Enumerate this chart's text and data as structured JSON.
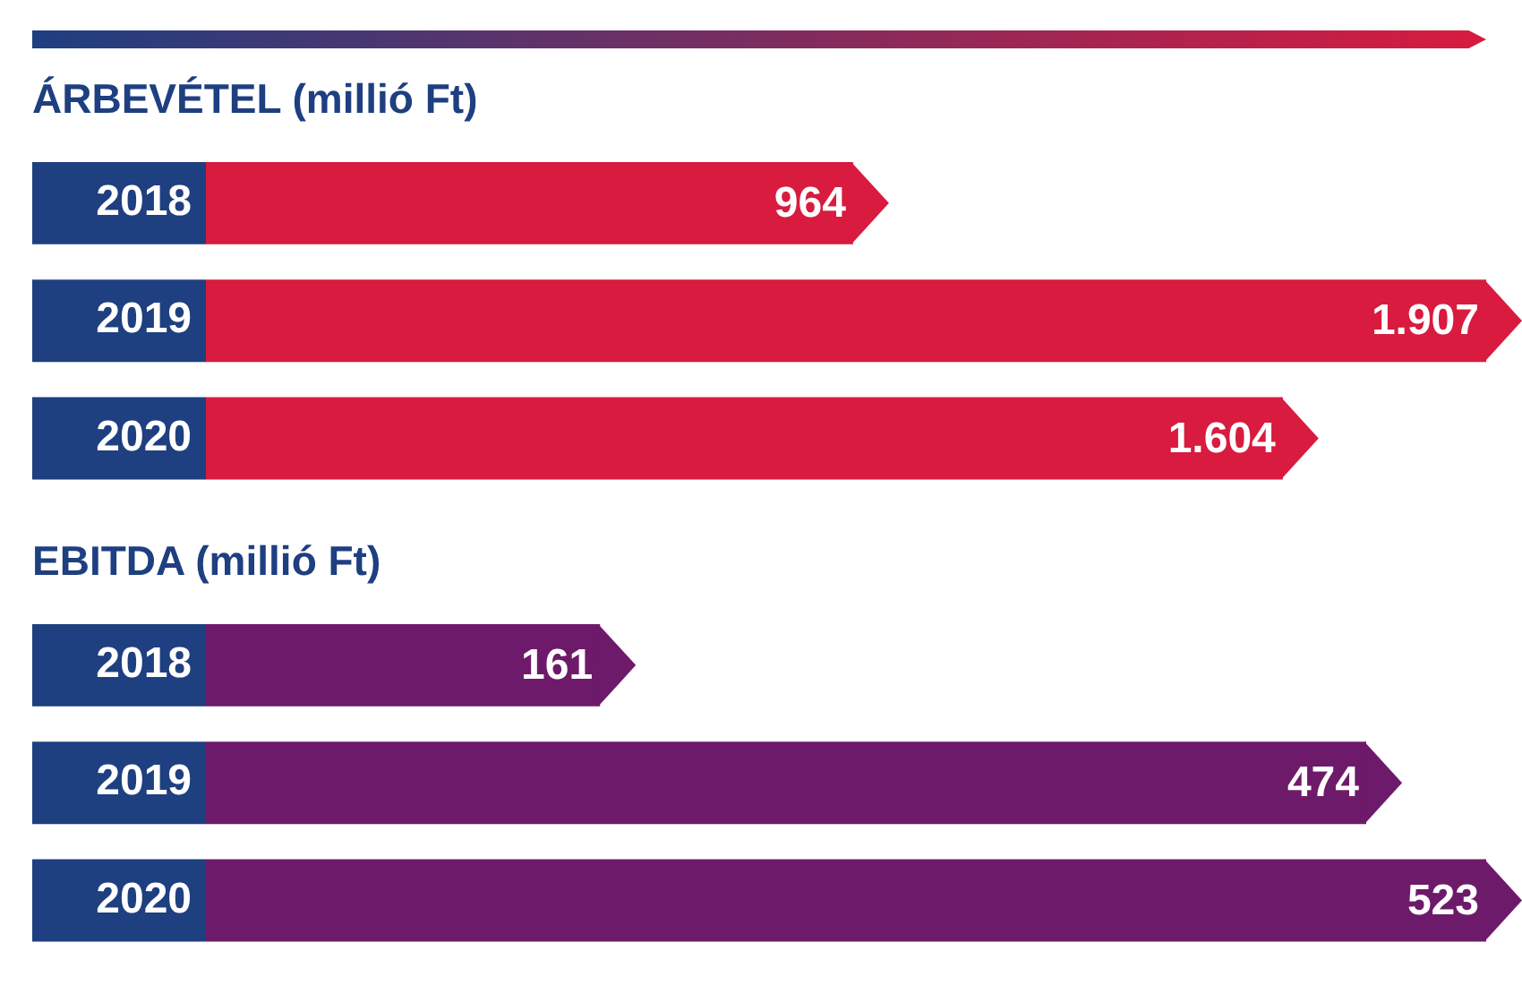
{
  "chart_data": [
    {
      "type": "bar",
      "orientation": "horizontal",
      "title": "ÁRBEVÉTEL (millió Ft)",
      "categories": [
        "2018",
        "2019",
        "2020"
      ],
      "values": [
        964,
        1907,
        1604
      ],
      "value_labels": [
        "964",
        "1.907",
        "1.604"
      ],
      "color": "#d81b3f"
    },
    {
      "type": "bar",
      "orientation": "horizontal",
      "title": "EBITDA (millió Ft)",
      "categories": [
        "2018",
        "2019",
        "2020"
      ],
      "values": [
        161,
        474,
        523
      ],
      "value_labels": [
        "161",
        "474",
        "523"
      ],
      "color": "#6e1a6a"
    }
  ]
}
